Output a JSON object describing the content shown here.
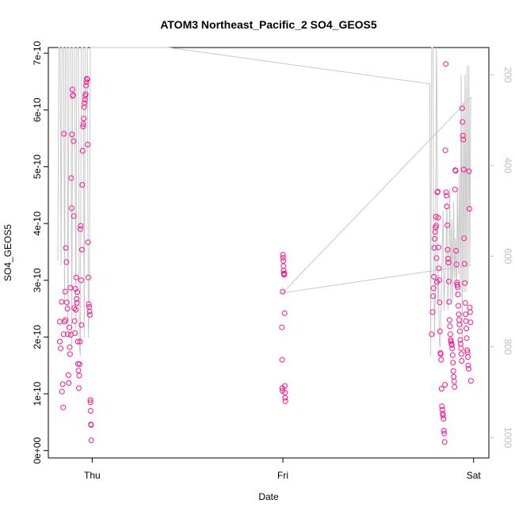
{
  "chart_data": {
    "type": "scatter",
    "title": "ATOM3 Northeast_Pacific_2 SO4_GEOS5",
    "xlabel": "Date",
    "ylabel": "SO4_GEOS5",
    "x_ticks": [
      {
        "label": "Thu",
        "x": 0
      },
      {
        "label": "Fri",
        "x": 1
      },
      {
        "label": "Sat",
        "x": 2
      }
    ],
    "xlim": [
      -0.23,
      2.08
    ],
    "y_ticks": [
      {
        "label": "0e+00",
        "y": 0
      },
      {
        "label": "1e-10",
        "y": 1e-10
      },
      {
        "label": "2e-10",
        "y": 2e-10
      },
      {
        "label": "3e-10",
        "y": 3e-10
      },
      {
        "label": "4e-10",
        "y": 4e-10
      },
      {
        "label": "5e-10",
        "y": 5e-10
      },
      {
        "label": "6e-10",
        "y": 6e-10
      },
      {
        "label": "7e-10",
        "y": 7e-10
      }
    ],
    "ylim": [
      -1.3e-11,
      7.1e-10
    ],
    "y2_ticks": [
      {
        "label": "200",
        "y": 200
      },
      {
        "label": "400",
        "y": 400
      },
      {
        "label": "600",
        "y": 600
      },
      {
        "label": "800",
        "y": 800
      },
      {
        "label": "1000",
        "y": 1000
      }
    ],
    "y2lim": [
      1045,
      140
    ],
    "y2_reversed": true,
    "series": [
      {
        "kind": "points",
        "color": "#ff1493",
        "points": [
          [
            -0.17,
            2.27e-10
          ],
          [
            -0.17,
            1.92e-10
          ],
          [
            -0.165,
            1.8e-10
          ],
          [
            -0.16,
            2.62e-10
          ],
          [
            -0.158,
            1.04e-10
          ],
          [
            -0.155,
            1.17e-10
          ],
          [
            -0.152,
            7.6e-11
          ],
          [
            -0.15,
            2.05e-10
          ],
          [
            -0.148,
            5.58e-10
          ],
          [
            -0.145,
            2.27e-10
          ],
          [
            -0.142,
            2.8e-10
          ],
          [
            -0.14,
            2.3e-10
          ],
          [
            -0.138,
            3.57e-10
          ],
          [
            -0.135,
            3.32e-10
          ],
          [
            -0.133,
            2.61e-10
          ],
          [
            -0.13,
            2.5e-10
          ],
          [
            -0.128,
            2.05e-10
          ],
          [
            -0.125,
            1.33e-10
          ],
          [
            -0.123,
            1.19e-10
          ],
          [
            -0.12,
            2.17e-10
          ],
          [
            -0.118,
            1.82e-10
          ],
          [
            -0.116,
            1.7e-10
          ],
          [
            -0.114,
            2.87e-10
          ],
          [
            -0.112,
            2.04e-10
          ],
          [
            -0.11,
            4.8e-10
          ],
          [
            -0.108,
            4.27e-10
          ],
          [
            -0.106,
            5.57e-10
          ],
          [
            -0.104,
            6.36e-10
          ],
          [
            -0.102,
            6.25e-10
          ],
          [
            -0.1,
            6.26e-10
          ],
          [
            -0.098,
            5.45e-10
          ],
          [
            -0.096,
            4.13e-10
          ],
          [
            -0.094,
            2.51e-10
          ],
          [
            -0.092,
            2.28e-10
          ],
          [
            -0.09,
            2.07e-10
          ],
          [
            -0.088,
            2.85e-10
          ],
          [
            -0.086,
            2.48e-10
          ],
          [
            -0.084,
            3.05e-10
          ],
          [
            -0.082,
            2.67e-10
          ],
          [
            -0.08,
            2.6e-10
          ],
          [
            -0.078,
            2.79e-10
          ],
          [
            -0.076,
            1.92e-10
          ],
          [
            -0.074,
            1.53e-10
          ],
          [
            -0.072,
            1.41e-10
          ],
          [
            -0.07,
            1.1e-10
          ],
          [
            -0.068,
            1.32e-10
          ],
          [
            -0.066,
            1.52e-10
          ],
          [
            -0.064,
            1.92e-10
          ],
          [
            -0.062,
            3.9e-10
          ],
          [
            -0.06,
            3.96e-10
          ],
          [
            -0.058,
            3e-10
          ],
          [
            -0.056,
            2.21e-10
          ],
          [
            -0.054,
            3.54e-10
          ],
          [
            -0.052,
            4.68e-10
          ],
          [
            -0.05,
            5.28e-10
          ],
          [
            -0.048,
            5.71e-10
          ],
          [
            -0.046,
            5.75e-10
          ],
          [
            -0.044,
            5.85e-10
          ],
          [
            -0.042,
            6.05e-10
          ],
          [
            -0.04,
            6.12e-10
          ],
          [
            -0.038,
            6.18e-10
          ],
          [
            -0.036,
            6.25e-10
          ],
          [
            -0.034,
            6.28e-10
          ],
          [
            -0.032,
            6.43e-10
          ],
          [
            -0.03,
            6.49e-10
          ],
          [
            -0.028,
            6.55e-10
          ],
          [
            -0.026,
            6.54e-10
          ],
          [
            -0.024,
            5.39e-10
          ],
          [
            -0.022,
            3.67e-10
          ],
          [
            -0.02,
            3.05e-10
          ],
          [
            -0.018,
            2.58e-10
          ],
          [
            -0.016,
            2.53e-10
          ],
          [
            -0.014,
            2.45e-10
          ],
          [
            -0.012,
            2.39e-10
          ],
          [
            -0.01,
            8.9e-11
          ],
          [
            -0.009,
            8.5e-11
          ],
          [
            -0.008,
            7e-11
          ],
          [
            -0.007,
            4.6e-11
          ],
          [
            -0.006,
            4.5e-11
          ],
          [
            -0.005,
            1.8e-11
          ],
          [
            0.995,
            2.17e-10
          ],
          [
            0.996,
            1.6e-10
          ],
          [
            0.997,
            1.1e-10
          ],
          [
            0.998,
            1.05e-10
          ],
          [
            0.999,
            2.8e-10
          ],
          [
            1.0,
            3.45e-10
          ],
          [
            1.001,
            3.4e-10
          ],
          [
            1.002,
            3.34e-10
          ],
          [
            1.003,
            3.25e-10
          ],
          [
            1.004,
            3.17e-10
          ],
          [
            1.005,
            3.12e-10
          ],
          [
            1.006,
            3.1e-10
          ],
          [
            1.007,
            3.12e-10
          ],
          [
            1.008,
            3.11e-10
          ],
          [
            1.009,
            2.42e-10
          ],
          [
            1.01,
            1.14e-10
          ],
          [
            1.011,
            1.02e-10
          ],
          [
            1.012,
            9.3e-11
          ],
          [
            1.013,
            8.7e-11
          ],
          [
            1.78,
            2.05e-10
          ],
          [
            1.785,
            2.44e-10
          ],
          [
            1.788,
            2.72e-10
          ],
          [
            1.79,
            2.86e-10
          ],
          [
            1.792,
            3.06e-10
          ],
          [
            1.794,
            3.57e-10
          ],
          [
            1.796,
            3.73e-10
          ],
          [
            1.798,
            3.85e-10
          ],
          [
            1.8,
            3.93e-10
          ],
          [
            1.802,
            4.12e-10
          ],
          [
            1.804,
            3.96e-10
          ],
          [
            1.806,
            3.39e-10
          ],
          [
            1.808,
            2.97e-10
          ],
          [
            1.81,
            4.55e-10
          ],
          [
            1.812,
            4.56e-10
          ],
          [
            1.814,
            4.1e-10
          ],
          [
            1.816,
            3.58e-10
          ],
          [
            1.818,
            3.21e-10
          ],
          [
            1.82,
            3e-10
          ],
          [
            1.822,
            2.61e-10
          ],
          [
            1.824,
            2.1e-10
          ],
          [
            1.826,
            1.72e-10
          ],
          [
            1.828,
            1.7e-10
          ],
          [
            1.83,
            1.6e-10
          ],
          [
            1.832,
            1.09e-10
          ],
          [
            1.834,
            7.8e-11
          ],
          [
            1.836,
            7.2e-11
          ],
          [
            1.838,
            6.5e-11
          ],
          [
            1.84,
            6.2e-11
          ],
          [
            1.842,
            5.6e-11
          ],
          [
            1.844,
            3.5e-11
          ],
          [
            1.846,
            3e-11
          ],
          [
            1.848,
            1.5e-11
          ],
          [
            1.85,
            1.16e-10
          ],
          [
            1.852,
            5.29e-10
          ],
          [
            1.854,
            6.81e-10
          ],
          [
            1.856,
            4.55e-10
          ],
          [
            1.858,
            4.49e-10
          ],
          [
            1.86,
            4.3e-10
          ],
          [
            1.862,
            3.97e-10
          ],
          [
            1.864,
            3.54e-10
          ],
          [
            1.866,
            3.38e-10
          ],
          [
            1.868,
            3.31e-10
          ],
          [
            1.87,
            2.98e-10
          ],
          [
            1.872,
            2.62e-10
          ],
          [
            1.874,
            2.3e-10
          ],
          [
            1.876,
            2.19e-10
          ],
          [
            1.878,
            2.05e-10
          ],
          [
            1.88,
            1.95e-10
          ],
          [
            1.882,
            1.92e-10
          ],
          [
            1.884,
            1.88e-10
          ],
          [
            1.886,
            1.86e-10
          ],
          [
            1.888,
            1.8e-10
          ],
          [
            1.89,
            1.68e-10
          ],
          [
            1.892,
            1.55e-10
          ],
          [
            1.894,
            1.4e-10
          ],
          [
            1.896,
            1.3e-10
          ],
          [
            1.898,
            1.22e-10
          ],
          [
            1.9,
            1.12e-10
          ],
          [
            1.902,
            4.6e-10
          ],
          [
            1.904,
            4.94e-10
          ],
          [
            1.906,
            4.93e-10
          ],
          [
            1.908,
            3.52e-10
          ],
          [
            1.91,
            3.28e-10
          ],
          [
            1.912,
            2.96e-10
          ],
          [
            1.914,
            2.92e-10
          ],
          [
            1.916,
            2.88e-10
          ],
          [
            1.918,
            2.75e-10
          ],
          [
            1.92,
            2.55e-10
          ],
          [
            1.922,
            2.4e-10
          ],
          [
            1.924,
            2.3e-10
          ],
          [
            1.926,
            2.22e-10
          ],
          [
            1.928,
            2.1e-10
          ],
          [
            1.93,
            1.95e-10
          ],
          [
            1.932,
            1.88e-10
          ],
          [
            1.934,
            1.8e-10
          ],
          [
            1.936,
            1.7e-10
          ],
          [
            1.938,
            1.58e-10
          ],
          [
            1.94,
            6.03e-10
          ],
          [
            1.942,
            5.79e-10
          ],
          [
            1.944,
            5.55e-10
          ],
          [
            1.946,
            5.48e-10
          ],
          [
            1.948,
            4.95e-10
          ],
          [
            1.95,
            3.74e-10
          ],
          [
            1.952,
            3.29e-10
          ],
          [
            1.954,
            2.95e-10
          ],
          [
            1.956,
            2.6e-10
          ],
          [
            1.958,
            2.4e-10
          ],
          [
            1.96,
            2.28e-10
          ],
          [
            1.962,
            2.15e-10
          ],
          [
            1.964,
            1.98e-10
          ],
          [
            1.966,
            1.77e-10
          ],
          [
            1.968,
            1.73e-10
          ],
          [
            1.97,
            1.65e-10
          ],
          [
            1.972,
            1.5e-10
          ],
          [
            1.974,
            1.44e-10
          ],
          [
            1.976,
            4.92e-10
          ],
          [
            1.978,
            4.26e-10
          ],
          [
            1.98,
            2.52e-10
          ],
          [
            1.982,
            2.44e-10
          ],
          [
            1.984,
            2.26e-10
          ],
          [
            1.986,
            1.23e-10
          ]
        ]
      },
      {
        "kind": "pressure-line",
        "color": "#c8c8c8",
        "points": [
          [
            -0.18,
            610
          ],
          [
            -0.175,
            140
          ],
          [
            -0.168,
            140
          ],
          [
            -0.163,
            620
          ],
          [
            -0.158,
            140
          ],
          [
            -0.15,
            140
          ],
          [
            -0.145,
            700
          ],
          [
            -0.14,
            140
          ],
          [
            -0.132,
            140
          ],
          [
            -0.127,
            760
          ],
          [
            -0.122,
            140
          ],
          [
            -0.112,
            140
          ],
          [
            -0.107,
            800
          ],
          [
            -0.102,
            140
          ],
          [
            -0.092,
            140
          ],
          [
            -0.086,
            760
          ],
          [
            -0.081,
            140
          ],
          [
            -0.072,
            140
          ],
          [
            -0.067,
            800
          ],
          [
            -0.062,
            820
          ],
          [
            -0.057,
            140
          ],
          [
            -0.047,
            140
          ],
          [
            -0.042,
            780
          ],
          [
            -0.036,
            140
          ],
          [
            -0.025,
            140
          ],
          [
            -0.02,
            780
          ],
          [
            -0.015,
            700
          ],
          [
            -0.01,
            140
          ],
          [
            0.4,
            140
          ],
          [
            1.77,
            220
          ],
          [
            1.775,
            820
          ],
          [
            1.78,
            140
          ],
          [
            1.787,
            140
          ],
          [
            1.79,
            560
          ],
          [
            1.795,
            780
          ],
          [
            1.8,
            660
          ],
          [
            1.805,
            140
          ],
          [
            1.808,
            230
          ],
          [
            1.812,
            700
          ],
          [
            1.817,
            640
          ],
          [
            1.82,
            790
          ],
          [
            1.825,
            800
          ],
          [
            1.83,
            700
          ],
          [
            1.835,
            600
          ],
          [
            1.84,
            500
          ],
          [
            1.845,
            720
          ],
          [
            1.85,
            640
          ],
          [
            1.855,
            600
          ],
          [
            1.86,
            480
          ],
          [
            1.865,
            720
          ],
          [
            1.868,
            650
          ],
          [
            1.87,
            600
          ],
          [
            1.875,
            450
          ],
          [
            1.88,
            700
          ],
          [
            1.885,
            520
          ],
          [
            1.89,
            700
          ],
          [
            1.895,
            480
          ],
          [
            1.9,
            650
          ],
          [
            1.905,
            560
          ],
          [
            1.91,
            690
          ],
          [
            1.915,
            450
          ],
          [
            1.92,
            640
          ],
          [
            1.925,
            420
          ],
          [
            1.93,
            680
          ],
          [
            1.935,
            200
          ],
          [
            1.94,
            790
          ],
          [
            1.945,
            260
          ],
          [
            1.95,
            680
          ],
          [
            1.955,
            200
          ],
          [
            1.96,
            680
          ],
          [
            1.965,
            180
          ],
          [
            1.97,
            660
          ],
          [
            1.975,
            180
          ],
          [
            1.98,
            620
          ],
          [
            1.985,
            250
          ],
          [
            1.0,
            680
          ],
          [
            1.013,
            680
          ],
          [
            1.986,
            620
          ]
        ]
      }
    ],
    "grid": false,
    "legend": "none"
  }
}
